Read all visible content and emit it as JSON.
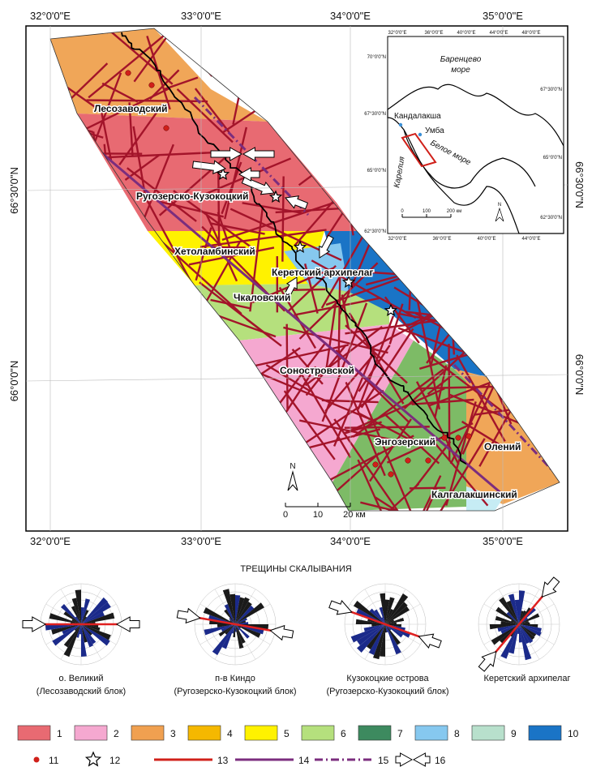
{
  "map": {
    "top_lon_labels": [
      "32°0'0\"E",
      "33°0'0\"E",
      "34°0'0\"E",
      "35°0'0\"E"
    ],
    "bottom_lon_labels": [
      "32°0'0\"E",
      "33°0'0\"E",
      "34°0'0\"E",
      "35°0'0\"E"
    ],
    "left_lat_labels": [
      "66°30'0\"N",
      "66°0'0\"N"
    ],
    "right_lat_labels": [
      "66°30'0\"N",
      "66°0'0\"N"
    ],
    "blocks": [
      "Лесозаводский",
      "Ругозерско-Кузокоцкий",
      "Хетоламбинский",
      "Керетский архипелаг",
      "Чкаловский",
      "Соностровской",
      "Энгозерский",
      "Олений",
      "Калгалакшинский"
    ],
    "north": "N",
    "scale": [
      "0",
      "10",
      "20 км"
    ]
  },
  "inset": {
    "top_lon_labels": [
      "32°0'0\"E",
      "36°0'0\"E",
      "40°0'0\"E",
      "44°0'0\"E",
      "48°0'0\"E"
    ],
    "bottom_lon_labels": [
      "32°0'0\"E",
      "36°0'0\"E",
      "40°0'0\"E",
      "44°0'0\"E"
    ],
    "left_lat_labels": [
      "70°0'0\"N",
      "67°30'0\"N",
      "65°0'0\"N",
      "62°30'0\"N"
    ],
    "right_lat_labels": [
      "67°30'0\"N",
      "65°0'0\"N",
      "62°30'0\"N"
    ],
    "places": [
      "Баренцево",
      "море",
      "Кандалакша",
      "Умба",
      "Белое море",
      "Карелия"
    ],
    "north": "N",
    "scale": [
      "0",
      "100",
      "200 км"
    ]
  },
  "rose": {
    "title": "ТРЕЩИНЫ СКАЛЫВАНИЯ",
    "captions": [
      [
        "о. Великий",
        "(Лесозаводский блок)"
      ],
      [
        "п-в Киндо",
        "(Ругозерско-Кузокоцкий блок)"
      ],
      [
        "Кузокоцкие острова",
        "(Ругозерско-Кузокоцкий блок)"
      ],
      [
        "Керетский архипелаг"
      ]
    ]
  },
  "legend": [
    "1",
    "2",
    "3",
    "4",
    "5",
    "6",
    "7",
    "8",
    "9",
    "10",
    "11",
    "12",
    "13",
    "14",
    "15",
    "16"
  ]
}
